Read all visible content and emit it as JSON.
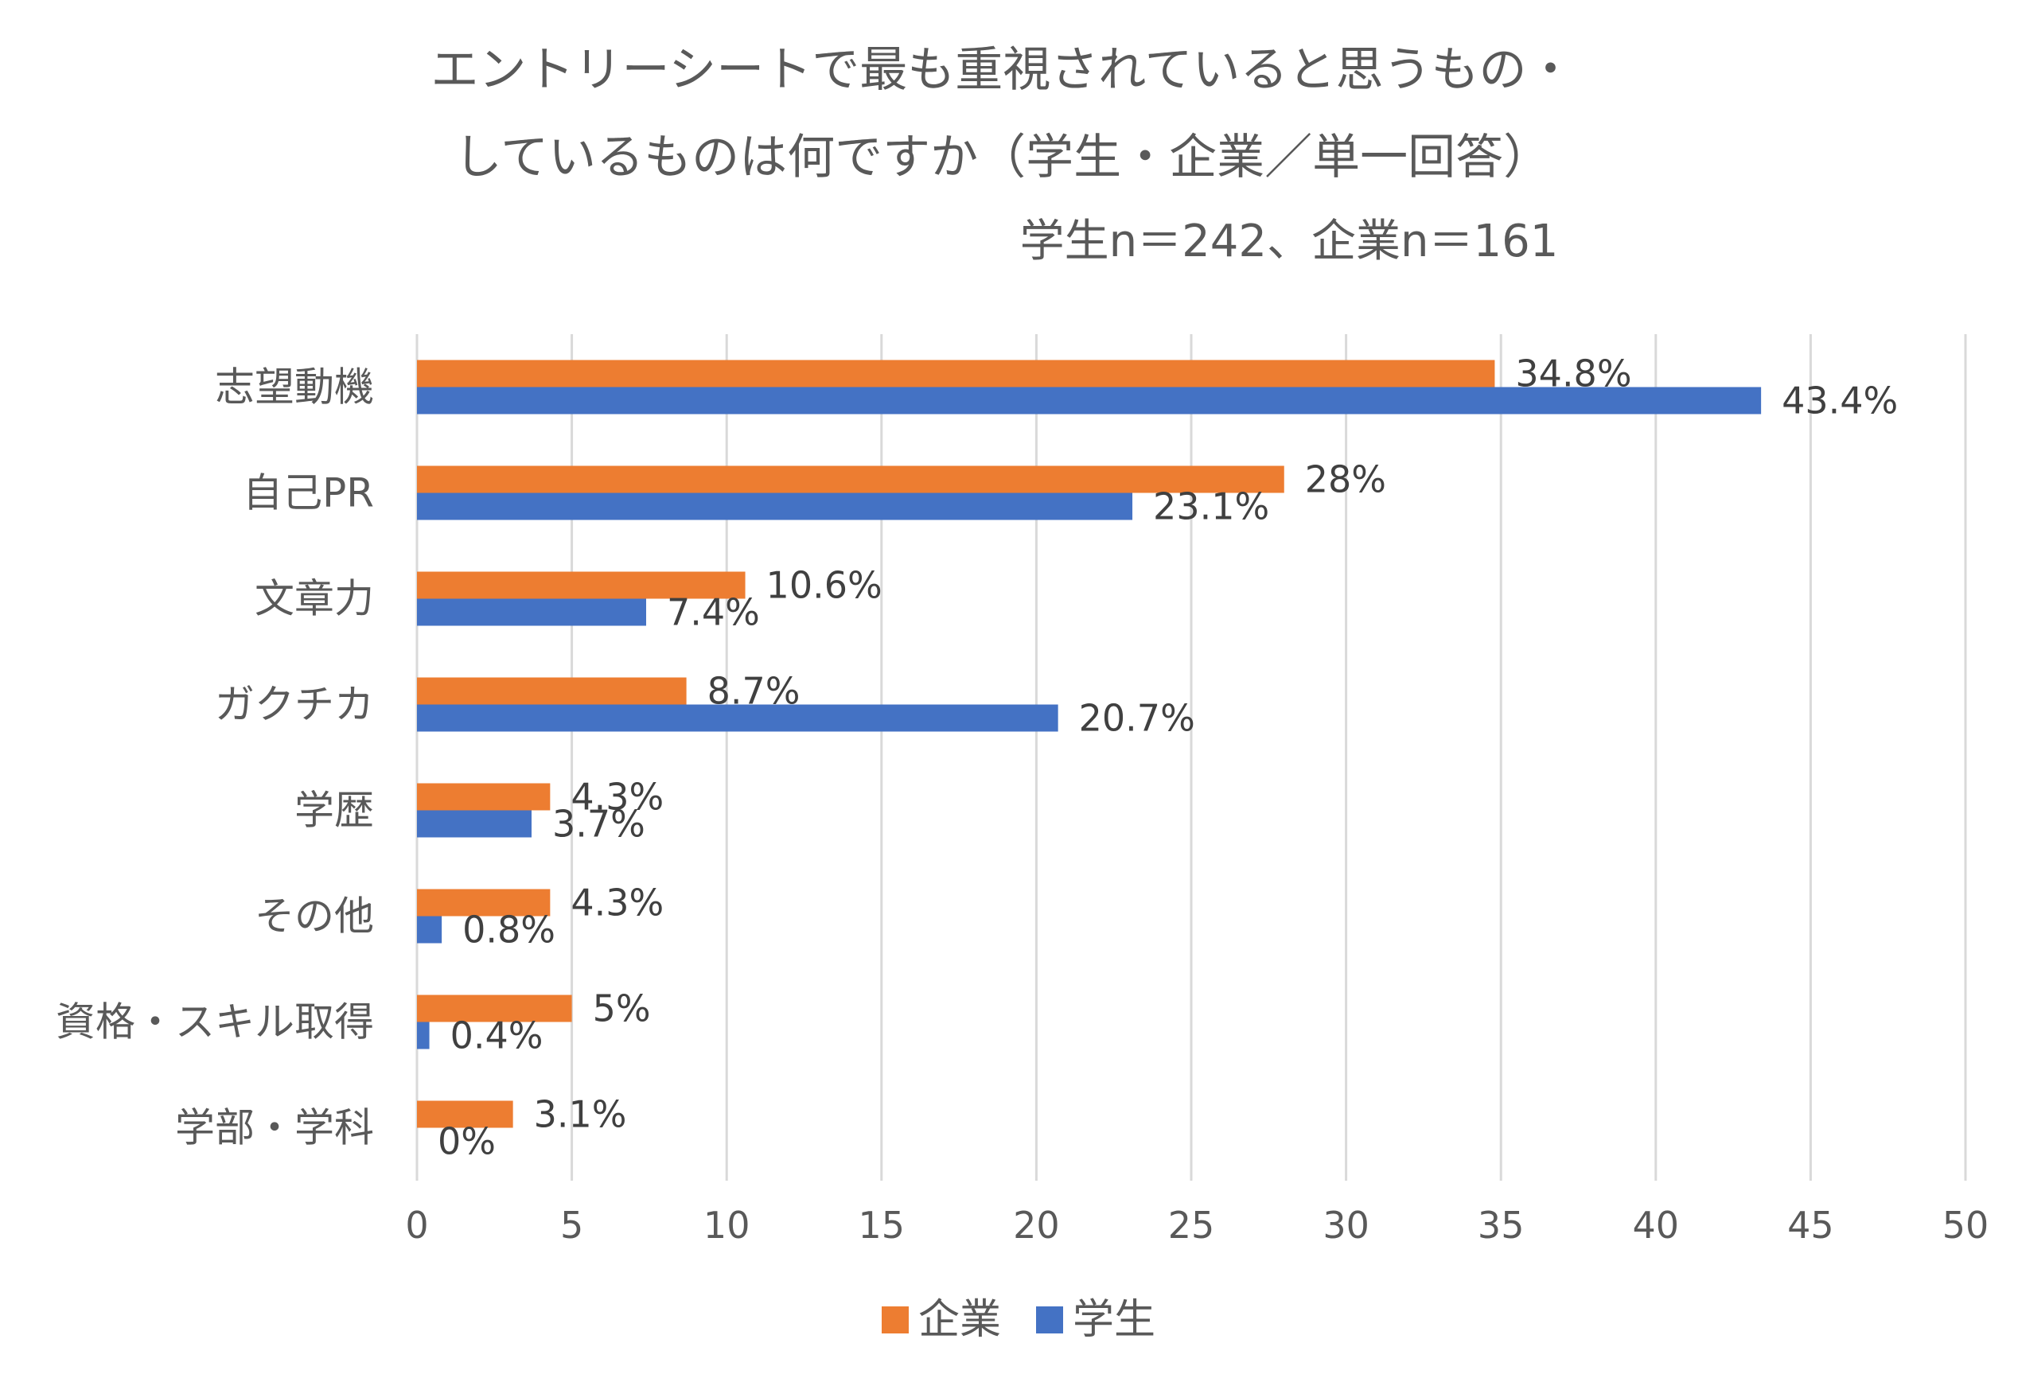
{
  "chart_data": {
    "type": "bar",
    "orientation": "horizontal",
    "title_lines": [
      "エントリーシートで最も重視されていると思うもの・",
      "しているものは何ですか（学生・企業／単一回答）"
    ],
    "subtitle": "学生n＝242、企業n＝161",
    "categories": [
      "志望動機",
      "自己PR",
      "文章力",
      "ガクチカ",
      "学歴",
      "その他",
      "資格・スキル取得",
      "学部・学科"
    ],
    "series": [
      {
        "name": "企業",
        "color": "#ed7d31",
        "values": [
          34.8,
          28,
          10.6,
          8.7,
          4.3,
          4.3,
          5,
          3.1
        ],
        "labels": [
          "34.8%",
          "28%",
          "10.6%",
          "8.7%",
          "4.3%",
          "4.3%",
          "5%",
          "3.1%"
        ]
      },
      {
        "name": "学生",
        "color": "#4472c4",
        "values": [
          43.4,
          23.1,
          7.4,
          20.7,
          3.7,
          0.8,
          0.4,
          0
        ],
        "labels": [
          "43.4%",
          "23.1%",
          "7.4%",
          "20.7%",
          "3.7%",
          "0.8%",
          "0.4%",
          "0%"
        ]
      }
    ],
    "xlim": [
      0,
      50
    ],
    "xticks": [
      "0",
      "5",
      "10",
      "15",
      "20",
      "25",
      "30",
      "35",
      "40",
      "45",
      "50"
    ],
    "grid": "vertical",
    "legend_position": "bottom"
  }
}
